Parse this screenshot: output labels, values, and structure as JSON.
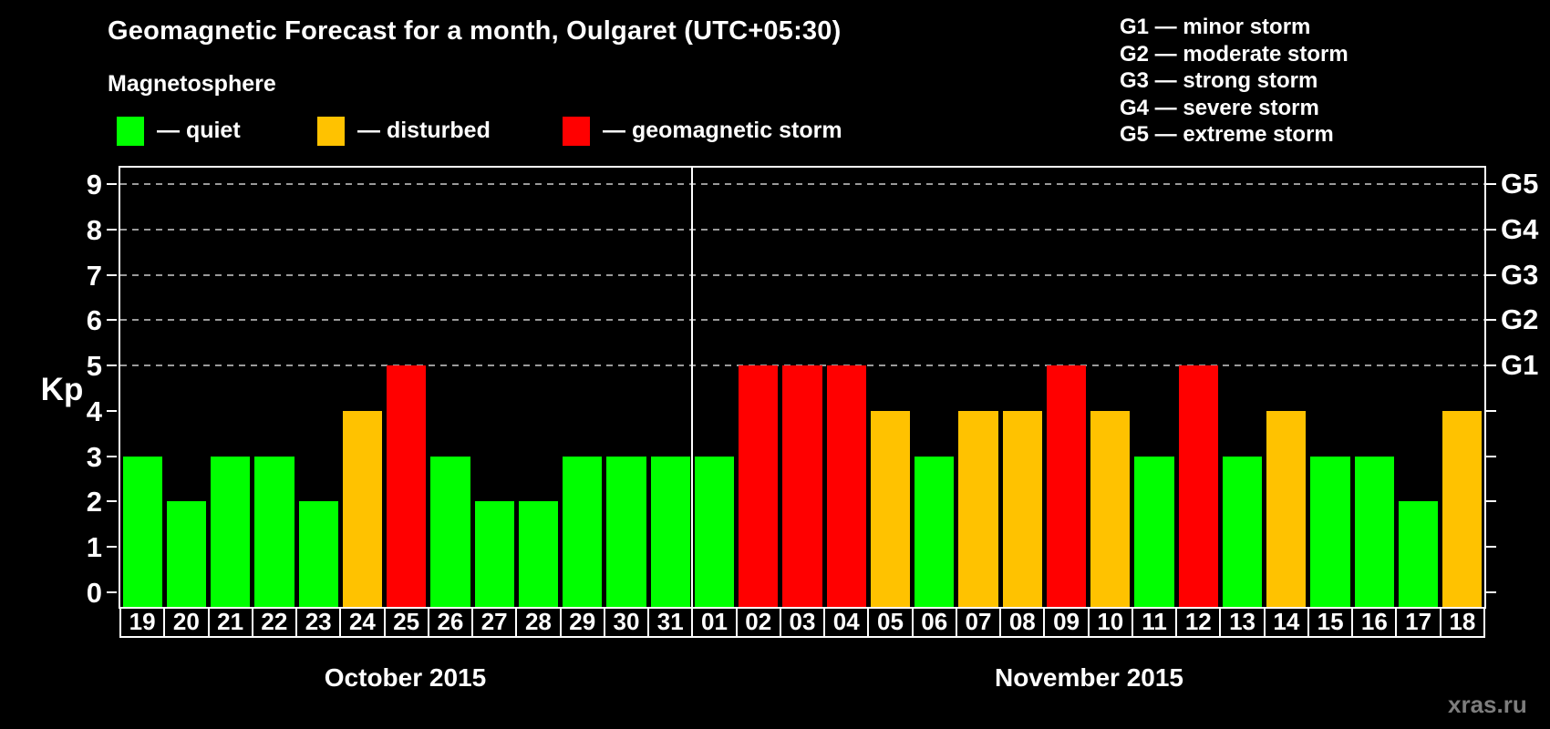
{
  "title": "Geomagnetic Forecast for a month, Oulgaret (UTC+05:30)",
  "subtitle": "Magnetosphere",
  "watermark": "xras.ru",
  "colors": {
    "quiet": "#00ff00",
    "disturbed": "#ffc200",
    "storm": "#ff0000",
    "grid": "#9a9a9a",
    "axis": "#ffffff",
    "watermark": "#7d7d7d",
    "background": "#000000"
  },
  "legend": [
    {
      "key": "quiet",
      "label": "— quiet"
    },
    {
      "key": "disturbed",
      "label": "— disturbed"
    },
    {
      "key": "storm",
      "label": "— geomagnetic storm"
    }
  ],
  "storm_scale": [
    "G1 — minor storm",
    "G2 — moderate storm",
    "G3 — strong storm",
    "G4 — severe storm",
    "G5 — extreme storm"
  ],
  "chart_data": {
    "type": "bar",
    "ylabel": "Kp",
    "ylim": [
      0,
      9
    ],
    "yticks": [
      0,
      1,
      2,
      3,
      4,
      5,
      6,
      7,
      8,
      9
    ],
    "gridlines_kp": [
      5,
      6,
      7,
      8,
      9
    ],
    "grid_style": "dashed",
    "right_axis": [
      {
        "kp": 5,
        "label": "G1"
      },
      {
        "kp": 6,
        "label": "G2"
      },
      {
        "kp": 7,
        "label": "G3"
      },
      {
        "kp": 8,
        "label": "G4"
      },
      {
        "kp": 9,
        "label": "G5"
      }
    ],
    "sections": [
      {
        "month": "October 2015",
        "days": [
          "19",
          "20",
          "21",
          "22",
          "23",
          "24",
          "25",
          "26",
          "27",
          "28",
          "29",
          "30",
          "31"
        ],
        "values": [
          3,
          2,
          3,
          3,
          2,
          4,
          5,
          3,
          2,
          2,
          3,
          3,
          3
        ],
        "states": [
          "quiet",
          "quiet",
          "quiet",
          "quiet",
          "quiet",
          "disturbed",
          "storm",
          "quiet",
          "quiet",
          "quiet",
          "quiet",
          "quiet",
          "quiet"
        ]
      },
      {
        "month": "November 2015",
        "days": [
          "01",
          "02",
          "03",
          "04",
          "05",
          "06",
          "07",
          "08",
          "09",
          "10",
          "11",
          "12",
          "13",
          "14",
          "15",
          "16",
          "17",
          "18"
        ],
        "values": [
          3,
          5,
          5,
          5,
          4,
          3,
          4,
          4,
          5,
          4,
          3,
          5,
          3,
          4,
          3,
          3,
          2,
          4
        ],
        "states": [
          "quiet",
          "storm",
          "storm",
          "storm",
          "disturbed",
          "quiet",
          "disturbed",
          "disturbed",
          "storm",
          "disturbed",
          "quiet",
          "storm",
          "quiet",
          "disturbed",
          "quiet",
          "quiet",
          "quiet",
          "disturbed"
        ]
      }
    ]
  }
}
